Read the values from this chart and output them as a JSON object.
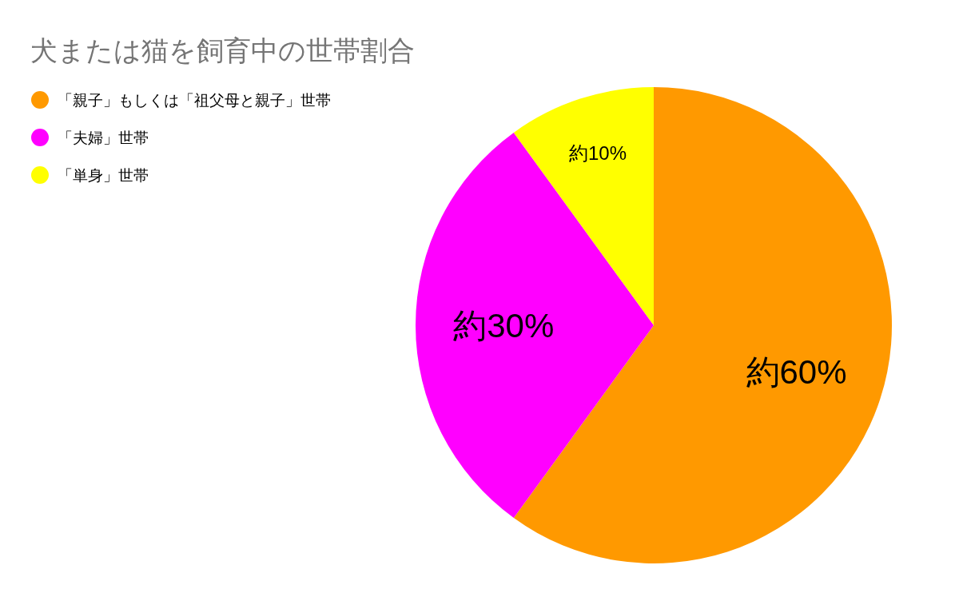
{
  "chart_data": {
    "type": "pie",
    "title": "犬または猫を飼育中の世帯割合",
    "categories": [
      "「親子」もしくは「祖父母と親子」世帯",
      "「夫婦」世帯",
      "「単身」世帯"
    ],
    "values": [
      60,
      30,
      10
    ],
    "colors": [
      "#ff9900",
      "#ff00ff",
      "#ffff00"
    ],
    "value_labels": [
      "約60%",
      "約30%",
      "約10%"
    ],
    "legend": "top left"
  }
}
